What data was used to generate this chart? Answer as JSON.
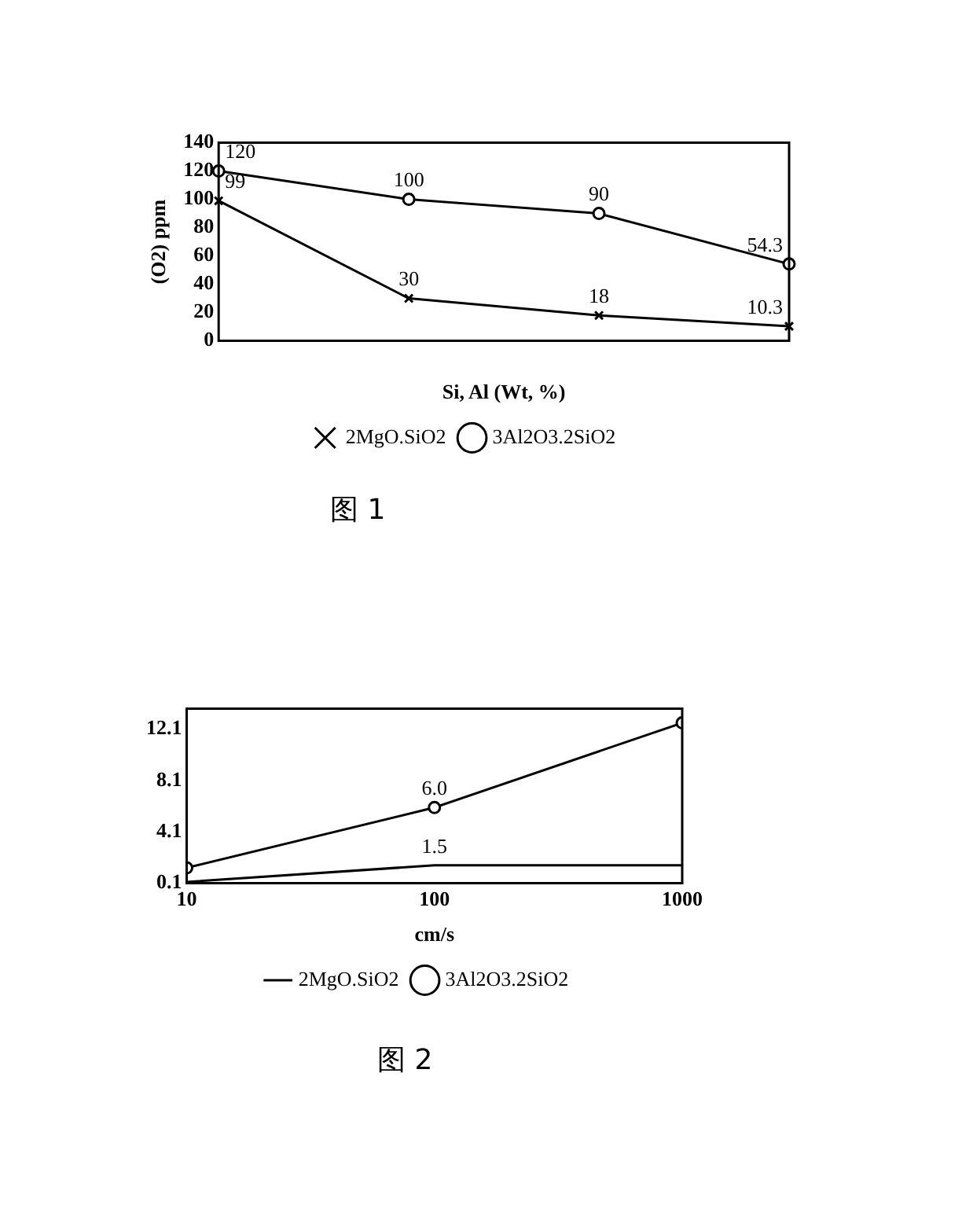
{
  "chart_data": [
    {
      "type": "line",
      "ylabel": "(O2) ppm",
      "xlabel": "Si, Al (Wt, %)",
      "categories": [
        null,
        null,
        null,
        null
      ],
      "series": [
        {
          "name": "2MgO.SiO2",
          "color": "#000000",
          "marker": "cross",
          "values": [
            99,
            30,
            18,
            10.3
          ]
        },
        {
          "name": "3Al2O3.2SiO2",
          "color": "#000000",
          "marker": "circle",
          "values": [
            120,
            100,
            90,
            54.3
          ]
        }
      ],
      "ylim": [
        0,
        140
      ],
      "yticks": [
        0,
        20,
        40,
        60,
        80,
        100,
        120,
        140
      ],
      "grid": false,
      "legend": "bottom",
      "data_labels": true,
      "annotations": [
        "图 1"
      ]
    },
    {
      "type": "line",
      "xlabel": "cm/s",
      "x": [
        10,
        100,
        1000
      ],
      "log": "x",
      "xlim": [
        10,
        1000
      ],
      "xticks": [
        10,
        100,
        1000
      ],
      "series": [
        {
          "name": "2MgO.SiO2",
          "color": "#000000",
          "marker": "none",
          "values": [
            0.2,
            1.5,
            1.5
          ],
          "value_labels": [
            null,
            "1.5",
            null
          ]
        },
        {
          "name": "3Al2O3.2SiO2",
          "color": "#000000",
          "marker": "circle",
          "values": [
            1.3,
            6.0,
            12.6
          ],
          "value_labels": [
            null,
            "6.0",
            null
          ]
        }
      ],
      "ylim": [
        0.1,
        13.7
      ],
      "yticks": [
        0.1,
        4.1,
        8.1,
        12.1
      ],
      "grid": false,
      "legend": "bottom",
      "annotations": [
        "图 2"
      ]
    }
  ]
}
